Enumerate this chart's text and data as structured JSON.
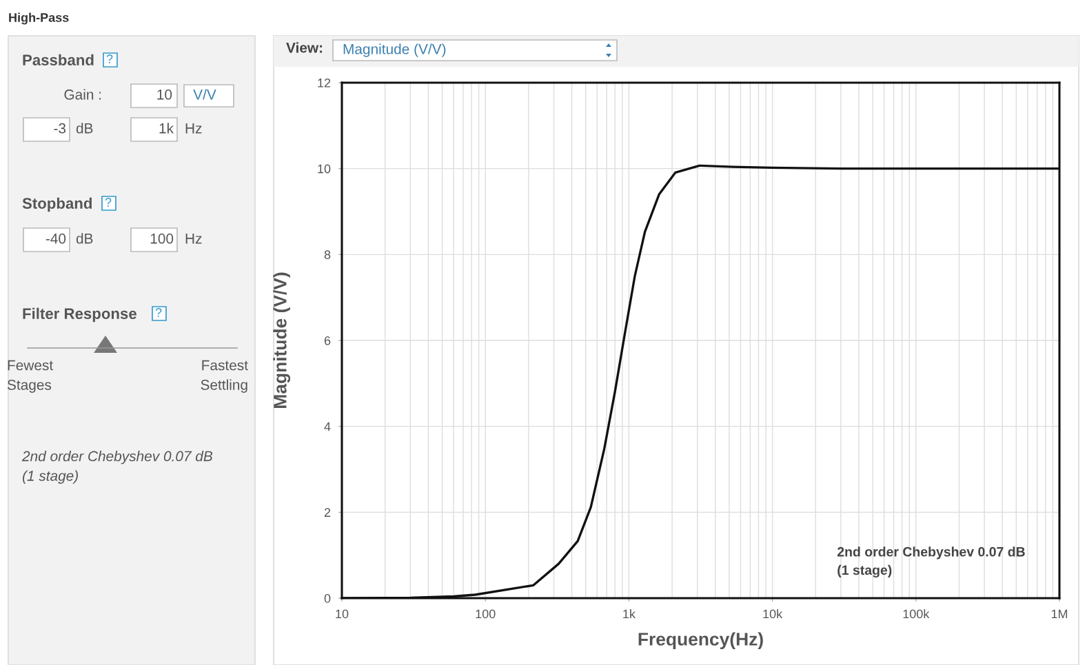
{
  "chart_data": [
    {
      "type": "other",
      "title": "High-Pass",
      "annotations": [
        "Passband",
        "?",
        "Gain :",
        "10",
        "V/V",
        "-3",
        "dB",
        "1k",
        "Hz",
        "Stopband",
        "?",
        "-40",
        "dB",
        "100",
        "Hz",
        "Filter Response",
        "?",
        "Fewest\nStages",
        "Fastest\nSettling",
        "2nd order Chebyshev 0.07 dB\n(1 stage)"
      ]
    },
    {
      "type": "line",
      "xlabel": "Frequency(Hz)",
      "ylabel": "Magnitude (V/V)",
      "annotations": [
        "View:",
        "Magnitude (V/V)",
        "2nd order Chebyshev 0.07 dB\n(1 stage)"
      ],
      "log": "x",
      "grid": true,
      "line_style": "solid",
      "marker": "none",
      "xlim": [
        10,
        1000000
      ],
      "ylim": [
        0,
        12
      ],
      "xticks": [
        10,
        100,
        {
          "value": 1000,
          "label": "1k"
        },
        {
          "value": 10000,
          "label": "10k"
        },
        {
          "value": 100000,
          "label": "100k"
        },
        {
          "value": 1000000,
          "label": "1M"
        }
      ],
      "yticks": [
        0,
        2,
        4,
        6,
        8,
        10,
        12
      ],
      "series": [
        {
          "color": "#111111",
          "x": [
            10,
            30,
            60,
            85,
            216,
            324,
            440,
            543,
            673,
            800,
            937,
            1100,
            1293,
            1623,
            2110,
            3100,
            5300,
            10000,
            30000,
            100000,
            1000000
          ],
          "values": [
            0,
            0.01,
            0.04,
            0.08,
            0.3,
            0.8,
            1.33,
            2.12,
            3.47,
            4.81,
            6.16,
            7.5,
            8.53,
            9.4,
            9.91,
            10.07,
            10.04,
            10.02,
            10.0,
            10.0,
            10.0
          ]
        }
      ]
    }
  ]
}
